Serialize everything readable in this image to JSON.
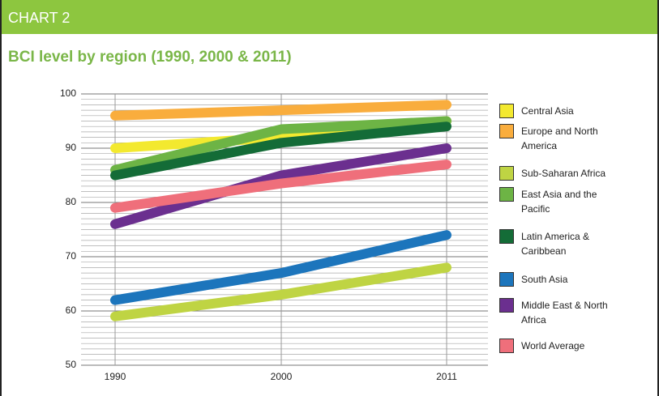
{
  "header": "CHART 2",
  "chart_data": {
    "type": "line",
    "title": "BCI level by region (1990, 2000 & 2011)",
    "categories": [
      "1990",
      "2000",
      "2011"
    ],
    "ylim": [
      50,
      100
    ],
    "yticks": [
      50,
      60,
      70,
      80,
      90,
      100
    ],
    "grid": true,
    "legend": "right",
    "series": [
      {
        "name": "Central Asia",
        "color": "#f3e92f",
        "values": [
          90,
          92,
          95
        ]
      },
      {
        "name": "Europe and North America",
        "color": "#f9ad3d",
        "values": [
          96,
          97,
          98
        ]
      },
      {
        "name": "Sub-Saharan Africa",
        "color": "#bfd443",
        "values": [
          59,
          63,
          68
        ]
      },
      {
        "name": "East Asia and the Pacific",
        "color": "#6db445",
        "values": [
          86,
          93.5,
          95
        ]
      },
      {
        "name": "Latin America & Caribbean",
        "color": "#146c37",
        "values": [
          85,
          91,
          94
        ]
      },
      {
        "name": "South Asia",
        "color": "#1c75bc",
        "values": [
          62,
          67,
          74
        ]
      },
      {
        "name": "Middle East & North Africa",
        "color": "#6b2f8f",
        "values": [
          76,
          85,
          90
        ]
      },
      {
        "name": "World Average",
        "color": "#ef6f7b",
        "values": [
          79,
          83.5,
          87
        ]
      }
    ]
  }
}
